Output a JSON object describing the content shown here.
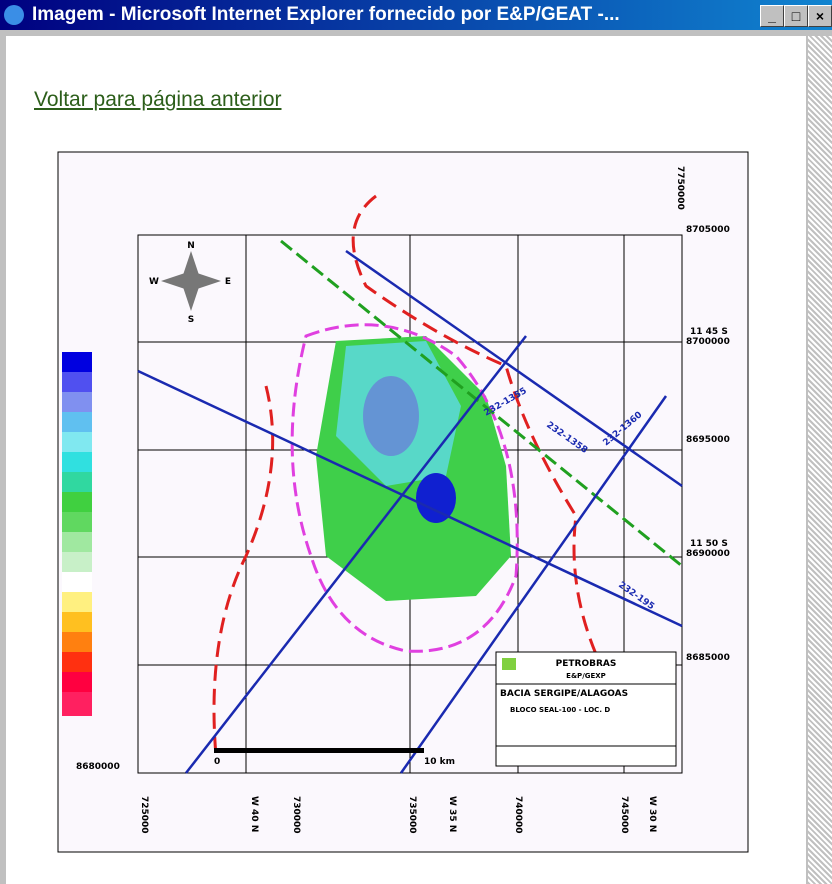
{
  "window": {
    "title": "Imagem - Microsoft Internet Explorer fornecido por E&P/GEAT -..."
  },
  "page": {
    "link": "Voltar para página anterior"
  },
  "map": {
    "compass": {
      "north": "N",
      "south": "S",
      "west": "W",
      "east": "E"
    },
    "northings": [
      "8705000",
      "8700000",
      "8695000",
      "8690000",
      "8685000",
      "8680000"
    ],
    "top_label": "7750000",
    "latitudes": [
      "11 45 S",
      "11 50 S"
    ],
    "eastings": [
      "725000",
      "730000",
      "735000",
      "740000",
      "745000"
    ],
    "longitudes": [
      "W 40 N",
      "W 35 N",
      "W 30 N"
    ],
    "scale": {
      "zero": "0",
      "end": "10 km"
    },
    "line_labels": [
      "232-1355",
      "232-1358",
      "232-1360",
      "232-195"
    ],
    "box": {
      "company": "PETROBRAS",
      "unit": "E&P/GEXP",
      "basin": "BACIA SERGIPE/ALAGOAS",
      "block": "BLOCO SEAL-100 - LOC. D"
    }
  }
}
